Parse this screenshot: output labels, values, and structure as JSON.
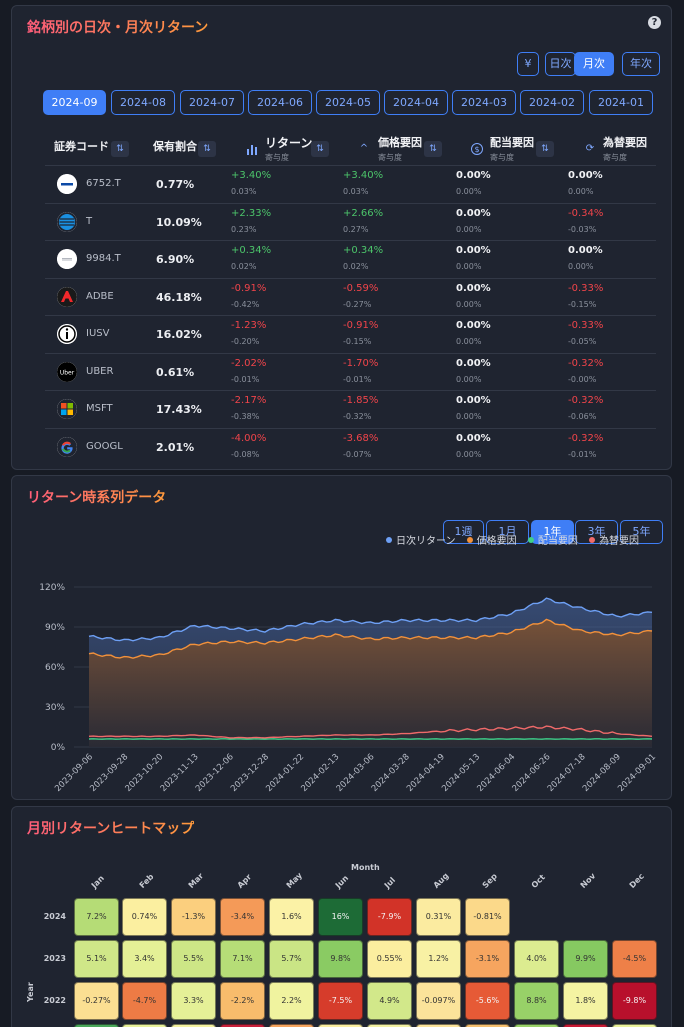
{
  "stocks_card": {
    "title": "銘柄別の日次・月次リターン",
    "help": "?",
    "currency_btn": "¥",
    "period_btns": [
      {
        "label": "日次",
        "active": false
      },
      {
        "label": "月次",
        "active": true
      },
      {
        "label": "年次",
        "active": false
      }
    ],
    "months": [
      {
        "label": "2024-09",
        "active": true
      },
      {
        "label": "2024-08",
        "active": false
      },
      {
        "label": "2024-07",
        "active": false
      },
      {
        "label": "2024-06",
        "active": false
      },
      {
        "label": "2024-05",
        "active": false
      },
      {
        "label": "2024-04",
        "active": false
      },
      {
        "label": "2024-03",
        "active": false
      },
      {
        "label": "2024-02",
        "active": false
      },
      {
        "label": "2024-01",
        "active": false
      }
    ],
    "headers": {
      "code": "証券コード",
      "weight": "保有割合",
      "ret": "リターン",
      "ret_sub": "寄与度",
      "price": "価格要因",
      "price_sub": "寄与度",
      "div": "配当要因",
      "div_sub": "寄与度",
      "fx": "為替要因",
      "fx_sub": "寄与度"
    },
    "rows": [
      {
        "ticker": "6752.T",
        "logo": "panasonic",
        "weight": "0.77%",
        "ret": "+3.40%",
        "ret_c": "0.03%",
        "price": "+3.40%",
        "price_c": "0.03%",
        "div": "0.00%",
        "div_c": "0.00%",
        "fx": "0.00%",
        "fx_c": "0.00%"
      },
      {
        "ticker": "T",
        "logo": "att",
        "weight": "10.09%",
        "ret": "+2.33%",
        "ret_c": "0.23%",
        "price": "+2.66%",
        "price_c": "0.27%",
        "div": "0.00%",
        "div_c": "0.00%",
        "fx": "-0.34%",
        "fx_c": "-0.03%"
      },
      {
        "ticker": "9984.T",
        "logo": "softbank",
        "weight": "6.90%",
        "ret": "+0.34%",
        "ret_c": "0.02%",
        "price": "+0.34%",
        "price_c": "0.02%",
        "div": "0.00%",
        "div_c": "0.00%",
        "fx": "0.00%",
        "fx_c": "0.00%"
      },
      {
        "ticker": "ADBE",
        "logo": "adobe",
        "weight": "46.18%",
        "ret": "-0.91%",
        "ret_c": "-0.42%",
        "price": "-0.59%",
        "price_c": "-0.27%",
        "div": "0.00%",
        "div_c": "0.00%",
        "fx": "-0.33%",
        "fx_c": "-0.15%"
      },
      {
        "ticker": "IUSV",
        "logo": "ishares",
        "weight": "16.02%",
        "ret": "-1.23%",
        "ret_c": "-0.20%",
        "price": "-0.91%",
        "price_c": "-0.15%",
        "div": "0.00%",
        "div_c": "0.00%",
        "fx": "-0.33%",
        "fx_c": "-0.05%"
      },
      {
        "ticker": "UBER",
        "logo": "uber",
        "weight": "0.61%",
        "ret": "-2.02%",
        "ret_c": "-0.01%",
        "price": "-1.70%",
        "price_c": "-0.01%",
        "div": "0.00%",
        "div_c": "0.00%",
        "fx": "-0.32%",
        "fx_c": "-0.00%"
      },
      {
        "ticker": "MSFT",
        "logo": "microsoft",
        "weight": "17.43%",
        "ret": "-2.17%",
        "ret_c": "-0.38%",
        "price": "-1.85%",
        "price_c": "-0.32%",
        "div": "0.00%",
        "div_c": "0.00%",
        "fx": "-0.32%",
        "fx_c": "-0.06%"
      },
      {
        "ticker": "GOOGL",
        "logo": "google",
        "weight": "2.01%",
        "ret": "-4.00%",
        "ret_c": "-0.08%",
        "price": "-3.68%",
        "price_c": "-0.07%",
        "div": "0.00%",
        "div_c": "0.00%",
        "fx": "-0.32%",
        "fx_c": "-0.01%"
      }
    ]
  },
  "timeseries_card": {
    "title": "リターン時系列データ",
    "ranges": [
      {
        "label": "1週",
        "active": false
      },
      {
        "label": "1月",
        "active": false
      },
      {
        "label": "1年",
        "active": true
      },
      {
        "label": "3年",
        "active": false
      },
      {
        "label": "5年",
        "active": false
      }
    ],
    "colors": {
      "daily": "#6ea0f5",
      "price": "#f2913b",
      "div": "#3ed08a",
      "fx": "#f06a6a"
    }
  },
  "chart_data": {
    "type": "area",
    "title": "",
    "xlabel": "",
    "ylabel": "",
    "ylim": [
      0,
      120
    ],
    "yticks": [
      "0%",
      "30%",
      "60%",
      "90%",
      "120%"
    ],
    "ytick_values": [
      0,
      30,
      60,
      90,
      120
    ],
    "x": [
      "2023-09-06",
      "2023-09-28",
      "2023-10-20",
      "2023-11-13",
      "2023-12-06",
      "2023-12-28",
      "2024-01-22",
      "2024-02-13",
      "2024-03-06",
      "2024-03-28",
      "2024-04-19",
      "2024-05-13",
      "2024-06-04",
      "2024-06-26",
      "2024-07-18",
      "2024-08-09",
      "2024-09-01"
    ],
    "series": [
      {
        "name": "日次リターン",
        "values": [
          83,
          80,
          82,
          91,
          89,
          87,
          92,
          95,
          93,
          95,
          95,
          95,
          100,
          111,
          104,
          98,
          101
        ]
      },
      {
        "name": "価格要因",
        "values": [
          70,
          67,
          69,
          77,
          79,
          78,
          81,
          84,
          81,
          82,
          82,
          82,
          86,
          95,
          87,
          84,
          87
        ]
      },
      {
        "name": "配当要因",
        "values": [
          6,
          6,
          6,
          6,
          6,
          6,
          6,
          6,
          6,
          6,
          6,
          6,
          6,
          6,
          6,
          6,
          6
        ]
      },
      {
        "name": "為替要因",
        "values": [
          8,
          8,
          8,
          9,
          7,
          7,
          8,
          9,
          9,
          10,
          12,
          13,
          14,
          15,
          13,
          10,
          8
        ]
      }
    ],
    "legend_position": "top-right"
  },
  "heatmap_card": {
    "title": "月別リターンヒートマップ",
    "axis_month": "Month",
    "axis_year": "Year",
    "months": [
      "Jan",
      "Feb",
      "Mar",
      "Apr",
      "May",
      "Jun",
      "Jul",
      "Aug",
      "Sep",
      "Oct",
      "Nov",
      "Dec"
    ],
    "rows": [
      {
        "year": "2024",
        "cells": [
          {
            "label": "7.2%",
            "color": "#b5dc76"
          },
          {
            "label": "0.74%",
            "color": "#fbefa0"
          },
          {
            "label": "-1.3%",
            "color": "#fbcf7e"
          },
          {
            "label": "-3.4%",
            "color": "#f49a58"
          },
          {
            "label": "1.6%",
            "color": "#fbf2a6"
          },
          {
            "label": "16%",
            "color": "#1d6b36"
          },
          {
            "label": "-7.9%",
            "color": "#d23328"
          },
          {
            "label": "0.31%",
            "color": "#fbeba0"
          },
          {
            "label": "-0.81%",
            "color": "#fbd98a"
          },
          null,
          null,
          null
        ]
      },
      {
        "year": "2023",
        "cells": [
          {
            "label": "5.1%",
            "color": "#cfe788"
          },
          {
            "label": "3.4%",
            "color": "#e4f096"
          },
          {
            "label": "5.5%",
            "color": "#cde686"
          },
          {
            "label": "7.1%",
            "color": "#b6dd77"
          },
          {
            "label": "5.7%",
            "color": "#cae585"
          },
          {
            "label": "9.8%",
            "color": "#8acb63"
          },
          {
            "label": "0.55%",
            "color": "#fbee9f"
          },
          {
            "label": "1.2%",
            "color": "#f8f1a4"
          },
          {
            "label": "-3.1%",
            "color": "#f6a55f"
          },
          {
            "label": "4.0%",
            "color": "#dcec90"
          },
          {
            "label": "9.9%",
            "color": "#86c961"
          },
          {
            "label": "-4.5%",
            "color": "#ee8048"
          }
        ]
      },
      {
        "year": "2022",
        "cells": [
          {
            "label": "-0.27%",
            "color": "#fbdf92"
          },
          {
            "label": "-4.7%",
            "color": "#ed7b45"
          },
          {
            "label": "3.3%",
            "color": "#e5f097"
          },
          {
            "label": "-2.2%",
            "color": "#f8bc6c"
          },
          {
            "label": "2.2%",
            "color": "#f0f39f"
          },
          {
            "label": "-7.5%",
            "color": "#d63c2b"
          },
          {
            "label": "4.9%",
            "color": "#d2e88a"
          },
          {
            "label": "-0.097%",
            "color": "#fbe39a"
          },
          {
            "label": "-5.6%",
            "color": "#e65a36"
          },
          {
            "label": "8.8%",
            "color": "#98d168"
          },
          {
            "label": "1.8%",
            "color": "#f4f3a2"
          },
          {
            "label": "-9.8%",
            "color": "#b8102c"
          }
        ]
      }
    ]
  }
}
